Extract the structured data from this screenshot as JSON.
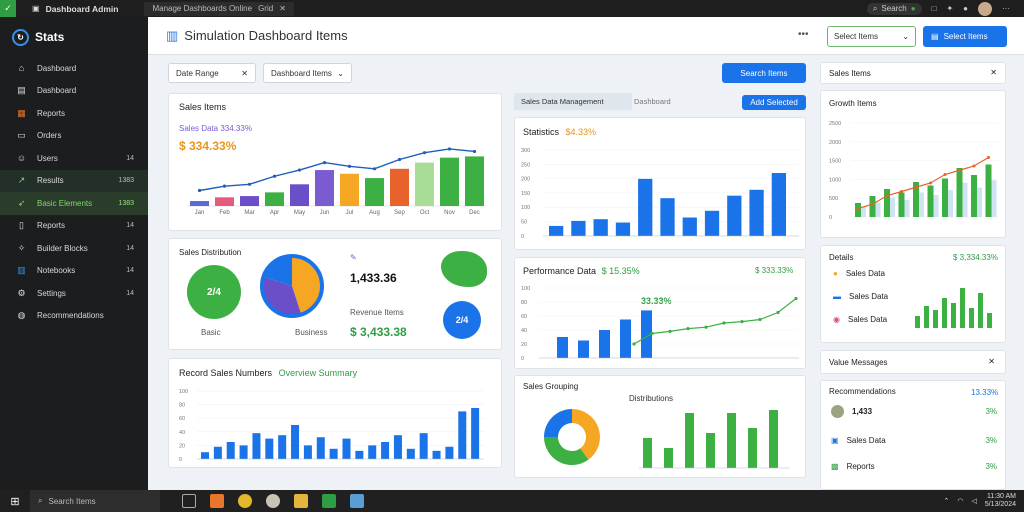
{
  "topbar": {
    "app_title": "Dashboard Admin",
    "tab_title": "Manage Dashboards Online",
    "tab_extra": "Grid",
    "search_label": "Search"
  },
  "sidebar": {
    "brand": "Stats",
    "items": [
      {
        "label": "Dashboard",
        "icon": "home-icon",
        "count": ""
      },
      {
        "label": "Dashboard",
        "icon": "folder-icon",
        "count": ""
      },
      {
        "label": "Reports",
        "icon": "grid-icon",
        "count": ""
      },
      {
        "label": "Orders",
        "icon": "cart-icon",
        "count": ""
      },
      {
        "label": "Users",
        "icon": "user-icon",
        "count": "14"
      },
      {
        "label": "Results",
        "icon": "trend-icon",
        "count": "1383"
      },
      {
        "label": "Basic Elements",
        "icon": "rocket-icon",
        "count": "1383"
      },
      {
        "label": "Reports",
        "icon": "doc-icon",
        "count": "14"
      },
      {
        "label": "Builder Blocks",
        "icon": "tools-icon",
        "count": "14"
      },
      {
        "label": "Notebooks",
        "icon": "book-icon",
        "count": "14"
      },
      {
        "label": "Settings",
        "icon": "gear-icon",
        "count": "14"
      },
      {
        "label": "Recommendations",
        "icon": "globe-icon",
        "count": ""
      }
    ]
  },
  "header": {
    "title": "Simulation Dashboard Items",
    "more": "•••",
    "select_label": "Select Items",
    "action_label": "Select Items"
  },
  "filters": {
    "date_label": "Date Range",
    "type_label": "Dashboard Items",
    "apply_label": "Search Items"
  },
  "cards": {
    "sales": {
      "title": "Sales Items",
      "legend": "Sales Data  334.33%",
      "value": "$ 334.33%",
      "categories": [
        "Jan",
        "Feb",
        "Mar",
        "Apr",
        "May",
        "Jun",
        "Jul",
        "Aug",
        "Sep",
        "Oct",
        "Nov",
        "Dec"
      ]
    },
    "donuts": {
      "title": "Sales Distribution",
      "label1": "Basic",
      "label2": "Business",
      "tag_value": "1,433.36",
      "sub_title": "Revenue Items",
      "money_value": "$ 3,433.38",
      "donut1_text": "2/4",
      "donut2_text": "2/4"
    },
    "bottom": {
      "title": "Record Sales Numbers",
      "highlight": "Overview Summary"
    },
    "tabs": {
      "active": "Sales Data Management",
      "inactive": "Dashboard"
    },
    "tab_button": "Add Selected",
    "mid_top": {
      "title": "Statistics",
      "value": "$4.33%"
    },
    "mid_second": {
      "title": "Performance Data",
      "tag": "$ 15.35%",
      "value": "33.33%",
      "badge_value": "$ 333.33%"
    },
    "mid_bottom": {
      "title": "Sales Grouping",
      "label": "Distributions"
    },
    "right_top": {
      "title": "Sales Items"
    },
    "right_growth": {
      "title": "Growth Items"
    },
    "right_details": {
      "title": "Details",
      "value": "$ 3,334.33%",
      "items": [
        "Sales Data",
        "Sales Data",
        "Sales Data"
      ]
    },
    "right_status": {
      "title": "Value Messages"
    },
    "right_list": {
      "title": "Recommendations",
      "header_value": "13.33%",
      "rows": [
        {
          "name": "1,433",
          "pct": "3%"
        },
        {
          "name": "Sales Data",
          "pct": "3%"
        },
        {
          "name": "Reports",
          "pct": "3%"
        }
      ]
    }
  },
  "taskbar": {
    "search": "Search Items",
    "time": "11:30 AM",
    "date": "5/13/2024"
  },
  "colors": {
    "accent": "#1a73e8",
    "green": "#3cb043",
    "orange": "#f5a623",
    "purple": "#6a4fc9",
    "dark": "#1b1d1f"
  },
  "chart_data": [
    {
      "type": "bar",
      "title": "Sales Items",
      "categories": [
        "Jan",
        "Feb",
        "Mar",
        "Apr",
        "May",
        "Jun",
        "Jul",
        "Aug",
        "Sep",
        "Oct",
        "Nov",
        "Dec"
      ],
      "series": [
        {
          "name": "Sales",
          "values": [
            8,
            14,
            16,
            22,
            35,
            58,
            52,
            45,
            60,
            70,
            78,
            80
          ]
        },
        {
          "name": "Growth",
          "values": [
            25,
            32,
            35,
            48,
            58,
            70,
            64,
            60,
            75,
            86,
            92,
            88
          ]
        }
      ],
      "ylim": [
        0,
        100
      ]
    },
    {
      "type": "bar",
      "title": "Statistics",
      "categories": [
        "1",
        "2",
        "3",
        "4",
        "5",
        "6",
        "7",
        "8",
        "9",
        "10",
        "11"
      ],
      "values": [
        12,
        18,
        20,
        16,
        68,
        45,
        22,
        30,
        48,
        55,
        75
      ],
      "yticks": [
        "0",
        "50",
        "100",
        "150",
        "200",
        "250",
        "300"
      ],
      "ylim": [
        0,
        100
      ]
    },
    {
      "type": "bar",
      "title": "Performance Data",
      "categories": [
        "1",
        "2",
        "3",
        "4",
        "5"
      ],
      "values": [
        30,
        25,
        40,
        55,
        68
      ],
      "line": [
        20,
        35,
        38,
        42,
        44,
        50,
        52,
        55,
        65,
        85
      ],
      "ylim": [
        0,
        100
      ]
    },
    {
      "type": "bar",
      "title": "Record Sales Numbers",
      "values": [
        10,
        18,
        25,
        20,
        38,
        30,
        35,
        50,
        20,
        32,
        15,
        30,
        12,
        20,
        25,
        35,
        15,
        38,
        12,
        18,
        70,
        75
      ],
      "ylim": [
        0,
        100
      ]
    },
    {
      "type": "pie",
      "title": "Sales Grouping",
      "labels": [
        "Orange",
        "Green",
        "Blue"
      ],
      "values": [
        40,
        35,
        25
      ]
    },
    {
      "type": "bar",
      "title": "Growth Items",
      "values": [
        20,
        30,
        40,
        35,
        50,
        45,
        55,
        70,
        60,
        75
      ],
      "line": [
        10,
        15,
        25,
        30,
        35,
        40,
        50,
        55,
        60,
        70
      ],
      "ylim": [
        0,
        100
      ]
    }
  ]
}
